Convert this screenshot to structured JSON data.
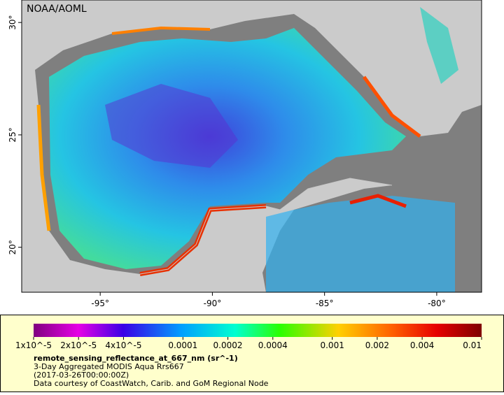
{
  "map": {
    "watermark": "NOAA/AOML",
    "xlim": [
      -98.5,
      -78
    ],
    "ylim": [
      18,
      31
    ],
    "xticks": [
      {
        "value": -95,
        "label": "-95°"
      },
      {
        "value": -90,
        "label": "-90°"
      },
      {
        "value": -85,
        "label": "-85°"
      },
      {
        "value": -80,
        "label": "-80°"
      }
    ],
    "yticks": [
      {
        "value": 20,
        "label": "20°"
      },
      {
        "value": 25,
        "label": "25°"
      },
      {
        "value": 30,
        "label": "30°"
      }
    ],
    "colorbar": {
      "scale": "log",
      "range": [
        1e-05,
        0.01
      ],
      "ticks": [
        {
          "value": 1e-05,
          "label": "1x10^-5"
        },
        {
          "value": 2e-05,
          "label": "2x10^-5"
        },
        {
          "value": 4e-05,
          "label": "4x10^-5"
        },
        0.0001,
        0.0002,
        0.0004,
        0.001,
        0.002,
        0.004,
        0.01
      ]
    },
    "legend": {
      "variable": "remote_sensing_reflectance_at_667_nm (sr^-1)",
      "dataset": "3-Day Aggregated MODIS Aqua Rrs667",
      "time": "(2017-03-26T00:00:00Z)",
      "credit": "Data courtesy of CoastWatch, Carib. and GoM Regional Node"
    }
  }
}
